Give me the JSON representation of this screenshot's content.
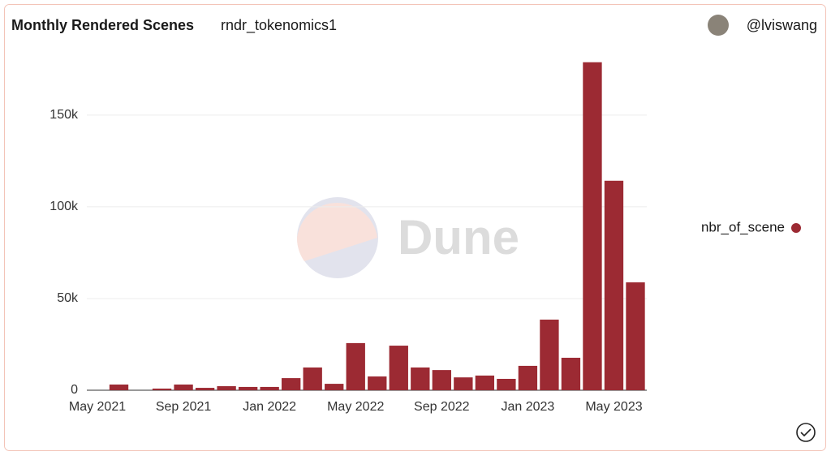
{
  "chart_data": {
    "type": "bar",
    "title": "Monthly Rendered Scenes",
    "subtitle": "rndr_tokenomics1",
    "author": "@lviswang",
    "watermark": "Dune",
    "x": [
      "2021-05",
      "2021-06",
      "2021-07",
      "2021-08",
      "2021-09",
      "2021-10",
      "2021-11",
      "2021-12",
      "2022-01",
      "2022-02",
      "2022-03",
      "2022-04",
      "2022-05",
      "2022-06",
      "2022-07",
      "2022-08",
      "2022-09",
      "2022-10",
      "2022-11",
      "2022-12",
      "2023-01",
      "2023-02",
      "2023-03",
      "2023-04",
      "2023-05",
      "2023-06"
    ],
    "series": [
      {
        "name": "nbr_of_scene",
        "color": "#9c2a33",
        "values": [
          0,
          3100,
          0,
          900,
          3100,
          1300,
          2200,
          1800,
          1800,
          6600,
          12400,
          3500,
          25700,
          7500,
          24300,
          12400,
          11000,
          7000,
          8000,
          6200,
          13300,
          38500,
          17700,
          178800,
          114200,
          58800
        ]
      }
    ],
    "xlim": [
      "2021-05",
      "2023-06"
    ],
    "xticks": [
      {
        "value": "2021-05",
        "label": "May 2021"
      },
      {
        "value": "2021-09",
        "label": "Sep 2021"
      },
      {
        "value": "2022-01",
        "label": "Jan 2022"
      },
      {
        "value": "2022-05",
        "label": "May 2022"
      },
      {
        "value": "2022-09",
        "label": "Sep 2022"
      },
      {
        "value": "2023-01",
        "label": "Jan 2023"
      },
      {
        "value": "2023-05",
        "label": "May 2023"
      }
    ],
    "ylim": [
      0,
      180000
    ],
    "yticks": [
      0,
      {
        "value": 50000,
        "label": "50k"
      },
      {
        "value": 100000,
        "label": "100k"
      },
      {
        "value": 150000,
        "label": "150k"
      }
    ],
    "grid": true,
    "legend": "right"
  }
}
